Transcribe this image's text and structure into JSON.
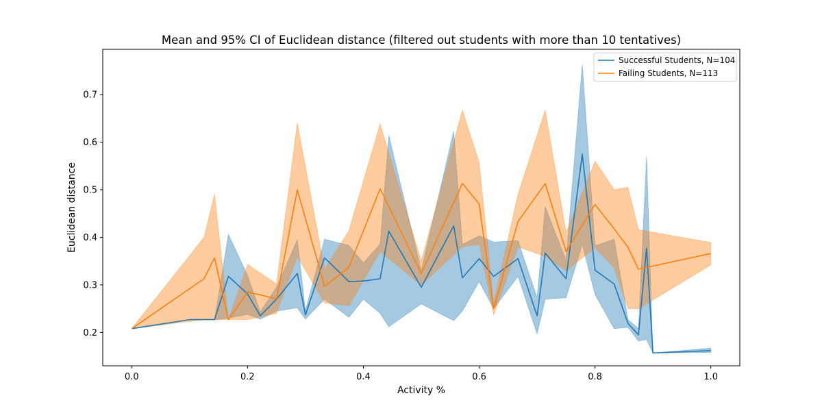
{
  "chart_data": {
    "type": "line",
    "title": "Mean and 95% CI of Euclidean distance (filtered out students with more than 10 tentatives)",
    "xlabel": "Activity %",
    "ylabel": "Euclidean distance",
    "xlim": [
      -0.05,
      1.05
    ],
    "ylim": [
      0.13,
      0.795
    ],
    "xticks": [
      0.0,
      0.2,
      0.4,
      0.6,
      0.8,
      1.0
    ],
    "xtick_labels": [
      "0.0",
      "0.2",
      "0.4",
      "0.6",
      "0.8",
      "1.0"
    ],
    "yticks": [
      0.2,
      0.3,
      0.4,
      0.5,
      0.6,
      0.7
    ],
    "ytick_labels": [
      "0.2",
      "0.3",
      "0.4",
      "0.5",
      "0.6",
      "0.7"
    ],
    "grid": false,
    "legend_position": "top-right",
    "series": [
      {
        "name": "Successful Students, N=104",
        "color": "#1f77b4",
        "band_color": "#1f77b4",
        "x": [
          0.0,
          0.1,
          0.125,
          0.143,
          0.167,
          0.2,
          0.222,
          0.25,
          0.286,
          0.3,
          0.333,
          0.375,
          0.4,
          0.429,
          0.444,
          0.5,
          0.556,
          0.571,
          0.6,
          0.625,
          0.667,
          0.7,
          0.714,
          0.75,
          0.778,
          0.8,
          0.833,
          0.857,
          0.875,
          0.889,
          0.9,
          1.0
        ],
        "y": [
          0.208,
          0.227,
          0.227,
          0.227,
          0.318,
          0.281,
          0.235,
          0.27,
          0.324,
          0.237,
          0.357,
          0.307,
          0.308,
          0.313,
          0.413,
          0.295,
          0.424,
          0.315,
          0.355,
          0.318,
          0.355,
          0.235,
          0.367,
          0.313,
          0.575,
          0.331,
          0.302,
          0.219,
          0.195,
          0.377,
          0.157,
          0.162
        ],
        "lower": [
          0.208,
          0.227,
          0.227,
          0.227,
          0.23,
          0.238,
          0.228,
          0.245,
          0.252,
          0.228,
          0.27,
          0.232,
          0.27,
          0.24,
          0.212,
          0.26,
          0.225,
          0.245,
          0.307,
          0.25,
          0.318,
          0.197,
          0.27,
          0.273,
          0.385,
          0.28,
          0.208,
          0.211,
          0.182,
          0.185,
          0.157,
          0.158
        ],
        "upper": [
          0.208,
          0.227,
          0.227,
          0.227,
          0.406,
          0.32,
          0.243,
          0.295,
          0.395,
          0.246,
          0.396,
          0.383,
          0.346,
          0.386,
          0.614,
          0.33,
          0.623,
          0.385,
          0.403,
          0.39,
          0.393,
          0.273,
          0.464,
          0.352,
          0.763,
          0.382,
          0.396,
          0.227,
          0.208,
          0.569,
          0.157,
          0.167
        ]
      },
      {
        "name": "Failing Students, N=113",
        "color": "#ff7f0e",
        "band_color": "#ff7f0e",
        "x": [
          0.0,
          0.125,
          0.143,
          0.167,
          0.2,
          0.25,
          0.286,
          0.333,
          0.375,
          0.429,
          0.5,
          0.571,
          0.6,
          0.625,
          0.667,
          0.714,
          0.75,
          0.8,
          0.833,
          0.857,
          0.875,
          1.0
        ],
        "y": [
          0.208,
          0.313,
          0.357,
          0.227,
          0.285,
          0.271,
          0.5,
          0.297,
          0.337,
          0.502,
          0.324,
          0.513,
          0.47,
          0.25,
          0.433,
          0.513,
          0.37,
          0.469,
          0.418,
          0.379,
          0.333,
          0.366
        ],
        "lower": [
          0.208,
          0.227,
          0.227,
          0.227,
          0.227,
          0.24,
          0.36,
          0.262,
          0.256,
          0.37,
          0.3,
          0.38,
          0.385,
          0.237,
          0.38,
          0.36,
          0.33,
          0.378,
          0.336,
          0.25,
          0.25,
          0.342
        ],
        "upper": [
          0.208,
          0.4,
          0.491,
          0.227,
          0.343,
          0.302,
          0.64,
          0.332,
          0.414,
          0.638,
          0.35,
          0.667,
          0.557,
          0.262,
          0.49,
          0.667,
          0.41,
          0.56,
          0.5,
          0.505,
          0.416,
          0.389
        ]
      }
    ]
  }
}
